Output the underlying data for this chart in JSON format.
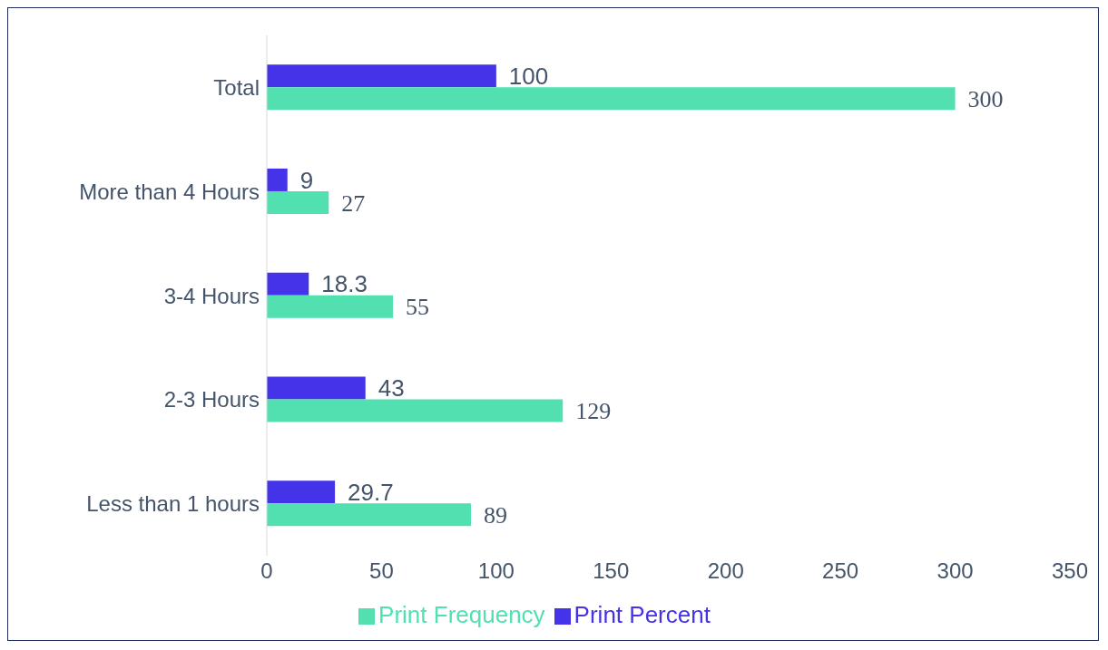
{
  "chart_data": {
    "type": "bar",
    "orientation": "horizontal",
    "categories": [
      "Total",
      "More than 4 Hours",
      "3-4 Hours",
      "2-3 Hours",
      "Less than 1 hours"
    ],
    "series": [
      {
        "name": "Print Percent",
        "color": "#4433e8",
        "values": [
          100,
          9,
          18.3,
          43,
          29.7
        ]
      },
      {
        "name": "Print Frequency",
        "color": "#52e0b0",
        "values": [
          300,
          27,
          55,
          129,
          89
        ]
      }
    ],
    "xlim": [
      0,
      350
    ],
    "xticks": [
      0,
      50,
      100,
      150,
      200,
      250,
      300,
      350
    ],
    "data_labels": true,
    "legend": "bottom",
    "grid": false
  }
}
